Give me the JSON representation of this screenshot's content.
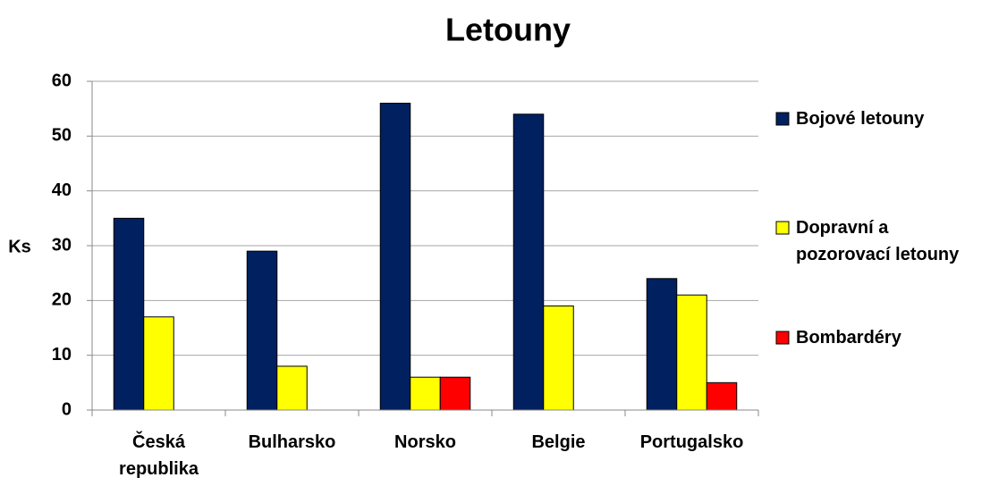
{
  "chart_data": {
    "type": "bar",
    "title": "Letouny",
    "y_label": "Ks",
    "categories": [
      "Česká republika",
      "Bulharsko",
      "Norsko",
      "Belgie",
      "Portugalsko"
    ],
    "series": [
      {
        "name": "Bojové letouny",
        "color": "#002060",
        "values": [
          35,
          29,
          56,
          54,
          24
        ]
      },
      {
        "name": "Dopravní a pozorovací letouny",
        "color": "#ffff00",
        "values": [
          17,
          8,
          6,
          19,
          21
        ]
      },
      {
        "name": "Bombardéry",
        "color": "#ff0000",
        "values": [
          0,
          0,
          6,
          0,
          5
        ]
      }
    ],
    "ylim": [
      0,
      60
    ],
    "yticks": [
      0,
      10,
      20,
      30,
      40,
      50,
      60
    ],
    "grid": true,
    "legend": "right"
  }
}
